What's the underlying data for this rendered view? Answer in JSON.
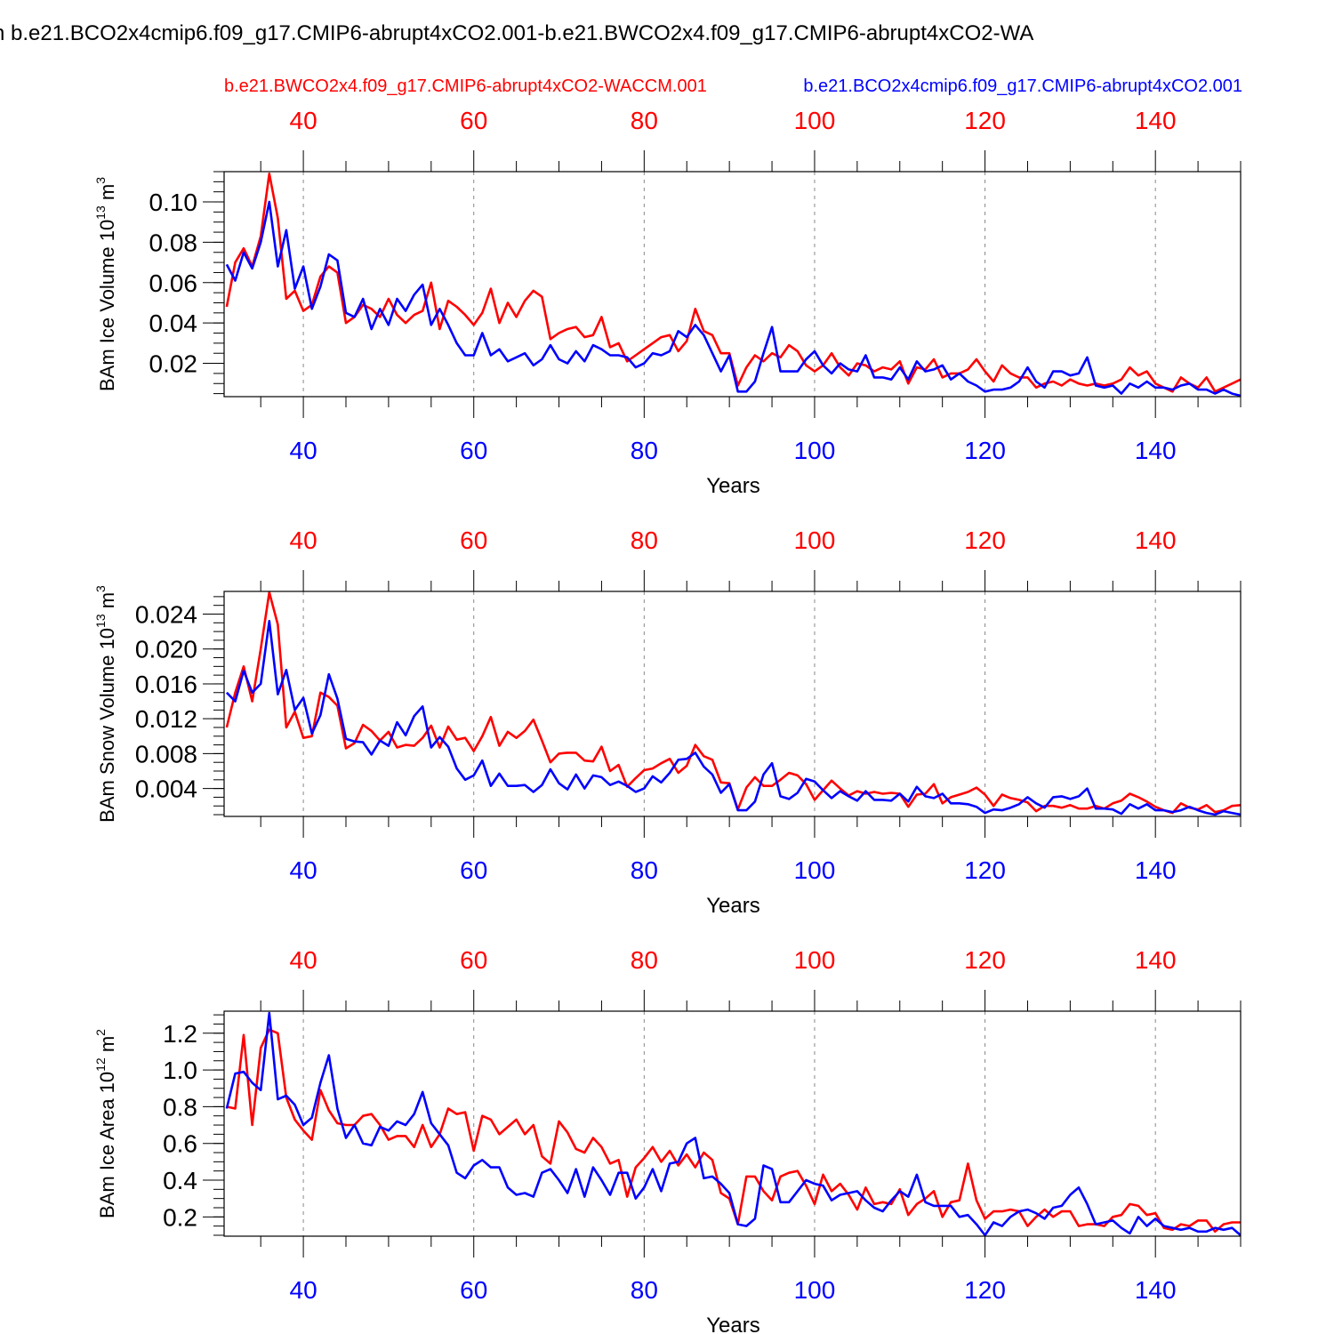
{
  "title": "n b.e21.BCO2x4cmip6.f09_g17.CMIP6-abrupt4xCO2.001-b.e21.BWCO2x4.f09_g17.CMIP6-abrupt4xCO2-WA",
  "colors": {
    "red": "#ff0000",
    "blue": "#0000ff",
    "axis": "#000000",
    "grid": "#888888"
  },
  "chart_data": [
    {
      "type": "line",
      "ylabel": "BAm Ice Volume 10",
      "ylabel_exp": "13",
      "ylabel_unit": " m",
      "ylabel_unit_exp": "3",
      "xlabel": "Years",
      "xlim": [
        30.7,
        150
      ],
      "ylim": [
        0.0035,
        0.115
      ],
      "xticks": [
        40,
        60,
        80,
        100,
        120,
        140
      ],
      "yticks": [
        0.02,
        0.04,
        0.06,
        0.08,
        0.1
      ],
      "ytick_labels": [
        "0.02",
        "0.04",
        "0.06",
        "0.08",
        "0.10"
      ],
      "yminor_step": 0.005,
      "legend_top": "b.e21.BWCO2x4.f09_g17.CMIP6-abrupt4xCO2-WACCM.001",
      "legend_bottom_overlay": "b.e21.BCO2x4cmip6.f09_g17.CMIP6-abrupt4xCO2.001",
      "series": [
        {
          "name": "b.e21.BWCO2x4.f09_g17.CMIP6-abrupt4xCO2-WACCM.001",
          "color": "#ff0000",
          "x_start": 31,
          "values": [
            0.048,
            0.07,
            0.077,
            0.068,
            0.083,
            0.114,
            0.092,
            0.052,
            0.056,
            0.046,
            0.049,
            0.063,
            0.068,
            0.065,
            0.04,
            0.043,
            0.049,
            0.047,
            0.043,
            0.052,
            0.044,
            0.04,
            0.044,
            0.046,
            0.06,
            0.037,
            0.051,
            0.048,
            0.044,
            0.039,
            0.045,
            0.057,
            0.04,
            0.05,
            0.043,
            0.051,
            0.056,
            0.053,
            0.032,
            0.035,
            0.037,
            0.038,
            0.033,
            0.034,
            0.043,
            0.028,
            0.03,
            0.021,
            0.024,
            0.027,
            0.03,
            0.033,
            0.034,
            0.026,
            0.031,
            0.047,
            0.036,
            0.034,
            0.025,
            0.025,
            0.009,
            0.018,
            0.024,
            0.021,
            0.025,
            0.023,
            0.029,
            0.026,
            0.019,
            0.016,
            0.019,
            0.025,
            0.018,
            0.014,
            0.02,
            0.019,
            0.016,
            0.018,
            0.017,
            0.021,
            0.01,
            0.018,
            0.017,
            0.022,
            0.013,
            0.015,
            0.015,
            0.017,
            0.022,
            0.016,
            0.011,
            0.019,
            0.015,
            0.013,
            0.013,
            0.008,
            0.01,
            0.011,
            0.009,
            0.012,
            0.01,
            0.009,
            0.01,
            0.009,
            0.01,
            0.012,
            0.018,
            0.014,
            0.016,
            0.01,
            0.008,
            0.006,
            0.013,
            0.01,
            0.008,
            0.013,
            0.006,
            0.008,
            0.01,
            0.012,
            0.011,
            0.008
          ]
        },
        {
          "name": "b.e21.BCO2x4cmip6.f09_g17.CMIP6-abrupt4xCO2.001",
          "color": "#0000ff",
          "x_start": 31,
          "values": [
            0.069,
            0.061,
            0.075,
            0.067,
            0.08,
            0.1,
            0.068,
            0.086,
            0.057,
            0.068,
            0.047,
            0.058,
            0.074,
            0.071,
            0.045,
            0.043,
            0.052,
            0.037,
            0.047,
            0.039,
            0.052,
            0.046,
            0.054,
            0.059,
            0.039,
            0.047,
            0.039,
            0.03,
            0.024,
            0.024,
            0.035,
            0.024,
            0.027,
            0.021,
            0.023,
            0.025,
            0.019,
            0.022,
            0.029,
            0.022,
            0.02,
            0.026,
            0.021,
            0.029,
            0.027,
            0.024,
            0.024,
            0.023,
            0.018,
            0.02,
            0.025,
            0.024,
            0.026,
            0.036,
            0.033,
            0.039,
            0.034,
            0.025,
            0.016,
            0.024,
            0.006,
            0.006,
            0.011,
            0.025,
            0.038,
            0.016,
            0.016,
            0.016,
            0.022,
            0.026,
            0.019,
            0.015,
            0.02,
            0.017,
            0.016,
            0.024,
            0.013,
            0.013,
            0.012,
            0.018,
            0.012,
            0.021,
            0.016,
            0.017,
            0.019,
            0.012,
            0.015,
            0.011,
            0.009,
            0.006,
            0.007,
            0.007,
            0.008,
            0.011,
            0.018,
            0.011,
            0.008,
            0.016,
            0.016,
            0.014,
            0.015,
            0.023,
            0.009,
            0.008,
            0.009,
            0.005,
            0.01,
            0.008,
            0.011,
            0.008,
            0.008,
            0.007,
            0.009,
            0.01,
            0.007,
            0.007,
            0.005,
            0.007,
            0.005,
            0.004,
            0.005,
            0.005
          ]
        }
      ]
    },
    {
      "type": "line",
      "ylabel": "BAm Snow Volume 10",
      "ylabel_exp": "13",
      "ylabel_unit": " m",
      "ylabel_unit_exp": "3",
      "xlabel": "Years",
      "xlim": [
        30.7,
        150
      ],
      "ylim": [
        0.0008,
        0.0266
      ],
      "xticks": [
        40,
        60,
        80,
        100,
        120,
        140
      ],
      "yticks": [
        0.004,
        0.008,
        0.012,
        0.016,
        0.02,
        0.024
      ],
      "ytick_labels": [
        "0.004",
        "0.008",
        "0.012",
        "0.016",
        "0.020",
        "0.024"
      ],
      "yminor_step": 0.001,
      "series": [
        {
          "name": "b.e21.BWCO2x4.f09_g17.CMIP6-abrupt4xCO2-WACCM.001",
          "color": "#ff0000",
          "x_start": 31,
          "values": [
            0.011,
            0.015,
            0.018,
            0.014,
            0.02,
            0.0265,
            0.0228,
            0.011,
            0.0128,
            0.0098,
            0.01,
            0.015,
            0.0145,
            0.0135,
            0.0086,
            0.0092,
            0.0113,
            0.0106,
            0.0095,
            0.0105,
            0.0087,
            0.009,
            0.0089,
            0.0098,
            0.0112,
            0.0087,
            0.0111,
            0.0096,
            0.0098,
            0.0083,
            0.01,
            0.0122,
            0.0089,
            0.0105,
            0.0098,
            0.0106,
            0.0119,
            0.0095,
            0.007,
            0.008,
            0.0081,
            0.0081,
            0.0072,
            0.0071,
            0.0088,
            0.006,
            0.0067,
            0.0042,
            0.0052,
            0.0061,
            0.0063,
            0.0069,
            0.0074,
            0.0058,
            0.0066,
            0.009,
            0.0077,
            0.0073,
            0.0047,
            0.0046,
            0.0016,
            0.0041,
            0.0053,
            0.0043,
            0.0043,
            0.005,
            0.0058,
            0.0055,
            0.0045,
            0.0027,
            0.0038,
            0.0049,
            0.004,
            0.0032,
            0.0037,
            0.0034,
            0.0036,
            0.0034,
            0.0035,
            0.0034,
            0.0019,
            0.0033,
            0.0034,
            0.0045,
            0.0023,
            0.003,
            0.0033,
            0.0036,
            0.0041,
            0.0033,
            0.002,
            0.0033,
            0.0029,
            0.0027,
            0.0024,
            0.0014,
            0.002,
            0.002,
            0.0018,
            0.0021,
            0.0017,
            0.0017,
            0.002,
            0.0017,
            0.0023,
            0.0026,
            0.0034,
            0.003,
            0.0025,
            0.0019,
            0.0015,
            0.0012,
            0.0023,
            0.0018,
            0.0016,
            0.0021,
            0.0013,
            0.0015,
            0.002,
            0.0021,
            0.0019,
            0.0015
          ]
        },
        {
          "name": "b.e21.BCO2x4cmip6.f09_g17.CMIP6-abrupt4xCO2.001",
          "color": "#0000ff",
          "x_start": 31,
          "values": [
            0.015,
            0.014,
            0.0175,
            0.015,
            0.016,
            0.0232,
            0.0148,
            0.0176,
            0.013,
            0.0144,
            0.0103,
            0.0124,
            0.0171,
            0.0143,
            0.0097,
            0.0094,
            0.0093,
            0.0079,
            0.0095,
            0.0089,
            0.0116,
            0.0101,
            0.0123,
            0.0134,
            0.0087,
            0.0099,
            0.0088,
            0.0063,
            0.005,
            0.0055,
            0.0072,
            0.0043,
            0.0057,
            0.0043,
            0.0043,
            0.0044,
            0.0036,
            0.0044,
            0.0062,
            0.0046,
            0.0039,
            0.0056,
            0.004,
            0.0055,
            0.0053,
            0.0044,
            0.0048,
            0.0043,
            0.0036,
            0.004,
            0.0054,
            0.0047,
            0.0058,
            0.0073,
            0.0074,
            0.0081,
            0.0065,
            0.0056,
            0.0035,
            0.0045,
            0.0015,
            0.0015,
            0.0025,
            0.0056,
            0.0069,
            0.0031,
            0.0028,
            0.0035,
            0.0051,
            0.0048,
            0.0038,
            0.0029,
            0.0037,
            0.0031,
            0.0026,
            0.0037,
            0.0027,
            0.0027,
            0.0026,
            0.0034,
            0.0025,
            0.0042,
            0.0031,
            0.0029,
            0.0034,
            0.0023,
            0.0023,
            0.0022,
            0.0019,
            0.0012,
            0.0016,
            0.0015,
            0.0018,
            0.0022,
            0.003,
            0.0023,
            0.0018,
            0.003,
            0.0031,
            0.0028,
            0.0031,
            0.004,
            0.0017,
            0.0017,
            0.0016,
            0.0011,
            0.0022,
            0.0017,
            0.0022,
            0.0015,
            0.0015,
            0.0013,
            0.0015,
            0.0019,
            0.0015,
            0.0012,
            0.001,
            0.0014,
            0.0012,
            0.001,
            0.0011,
            0.0011
          ]
        }
      ]
    },
    {
      "type": "line",
      "ylabel": "BAm Ice Area 10",
      "ylabel_exp": "12",
      "ylabel_unit": " m",
      "ylabel_unit_exp": "2",
      "xlabel": "Years",
      "xlim": [
        30.7,
        150
      ],
      "ylim": [
        0.095,
        1.32
      ],
      "xticks": [
        40,
        60,
        80,
        100,
        120,
        140
      ],
      "yticks": [
        0.2,
        0.4,
        0.6,
        0.8,
        1.0,
        1.2
      ],
      "ytick_labels": [
        "0.2",
        "0.4",
        "0.6",
        "0.8",
        "1.0",
        "1.2"
      ],
      "yminor_step": 0.05,
      "series": [
        {
          "name": "b.e21.BWCO2x4.f09_g17.CMIP6-abrupt4xCO2-WACCM.001",
          "color": "#ff0000",
          "x_start": 31,
          "values": [
            0.8,
            0.79,
            1.19,
            0.7,
            1.12,
            1.22,
            1.2,
            0.85,
            0.73,
            0.67,
            0.62,
            0.89,
            0.78,
            0.71,
            0.7,
            0.7,
            0.75,
            0.76,
            0.7,
            0.62,
            0.64,
            0.64,
            0.58,
            0.7,
            0.58,
            0.65,
            0.79,
            0.76,
            0.77,
            0.56,
            0.75,
            0.73,
            0.65,
            0.69,
            0.73,
            0.65,
            0.7,
            0.53,
            0.49,
            0.72,
            0.66,
            0.57,
            0.55,
            0.63,
            0.58,
            0.49,
            0.51,
            0.31,
            0.47,
            0.52,
            0.58,
            0.5,
            0.56,
            0.48,
            0.54,
            0.47,
            0.55,
            0.51,
            0.33,
            0.3,
            0.16,
            0.42,
            0.42,
            0.34,
            0.29,
            0.42,
            0.44,
            0.45,
            0.37,
            0.27,
            0.43,
            0.34,
            0.38,
            0.32,
            0.24,
            0.36,
            0.27,
            0.28,
            0.27,
            0.35,
            0.21,
            0.27,
            0.3,
            0.34,
            0.2,
            0.28,
            0.29,
            0.49,
            0.29,
            0.19,
            0.23,
            0.23,
            0.24,
            0.23,
            0.15,
            0.2,
            0.24,
            0.2,
            0.23,
            0.23,
            0.15,
            0.16,
            0.16,
            0.15,
            0.2,
            0.21,
            0.27,
            0.26,
            0.21,
            0.22,
            0.14,
            0.13,
            0.16,
            0.15,
            0.18,
            0.18,
            0.12,
            0.16,
            0.17,
            0.17,
            0.18,
            0.18
          ]
        },
        {
          "name": "b.e21.BCO2x4cmip6.f09_g17.CMIP6-abrupt4xCO2.001",
          "color": "#0000ff",
          "x_start": 31,
          "values": [
            0.79,
            0.98,
            0.99,
            0.93,
            0.89,
            1.31,
            0.84,
            0.86,
            0.81,
            0.7,
            0.74,
            0.93,
            1.08,
            0.79,
            0.63,
            0.7,
            0.6,
            0.59,
            0.69,
            0.67,
            0.72,
            0.7,
            0.76,
            0.88,
            0.71,
            0.65,
            0.59,
            0.44,
            0.41,
            0.48,
            0.51,
            0.47,
            0.47,
            0.36,
            0.32,
            0.33,
            0.31,
            0.44,
            0.46,
            0.4,
            0.33,
            0.46,
            0.31,
            0.47,
            0.4,
            0.32,
            0.44,
            0.44,
            0.3,
            0.36,
            0.46,
            0.34,
            0.49,
            0.5,
            0.6,
            0.63,
            0.41,
            0.42,
            0.38,
            0.33,
            0.16,
            0.15,
            0.19,
            0.48,
            0.46,
            0.28,
            0.28,
            0.34,
            0.4,
            0.38,
            0.37,
            0.29,
            0.32,
            0.33,
            0.34,
            0.29,
            0.25,
            0.23,
            0.29,
            0.34,
            0.31,
            0.43,
            0.28,
            0.26,
            0.26,
            0.26,
            0.2,
            0.21,
            0.16,
            0.1,
            0.17,
            0.15,
            0.2,
            0.23,
            0.24,
            0.22,
            0.19,
            0.25,
            0.26,
            0.32,
            0.36,
            0.27,
            0.16,
            0.17,
            0.18,
            0.14,
            0.11,
            0.2,
            0.15,
            0.19,
            0.15,
            0.14,
            0.13,
            0.14,
            0.12,
            0.12,
            0.14,
            0.13,
            0.14,
            0.1,
            0.11,
            0.11
          ]
        }
      ]
    }
  ]
}
